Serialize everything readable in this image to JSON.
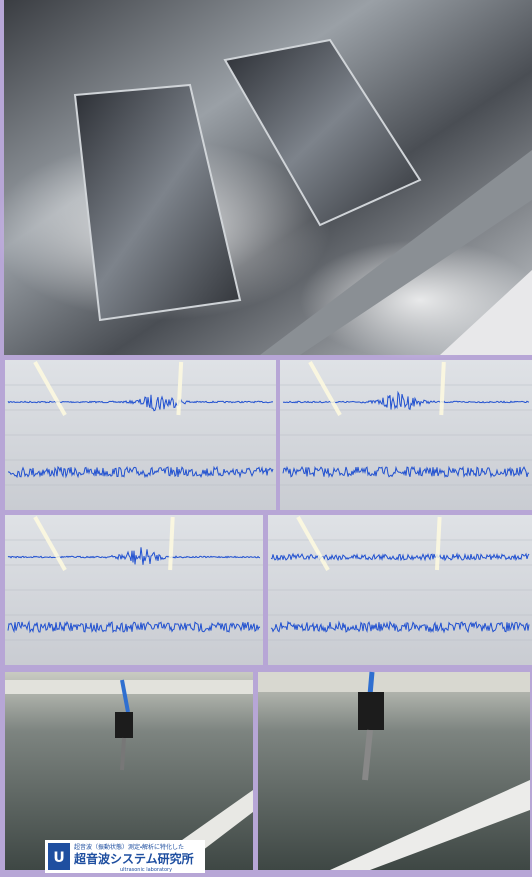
{
  "logo": {
    "caption": "超音波（振動状態）測定・解析に特化した",
    "name": "超音波システム研究所",
    "subtitle": "ultrasonic laboratory"
  }
}
